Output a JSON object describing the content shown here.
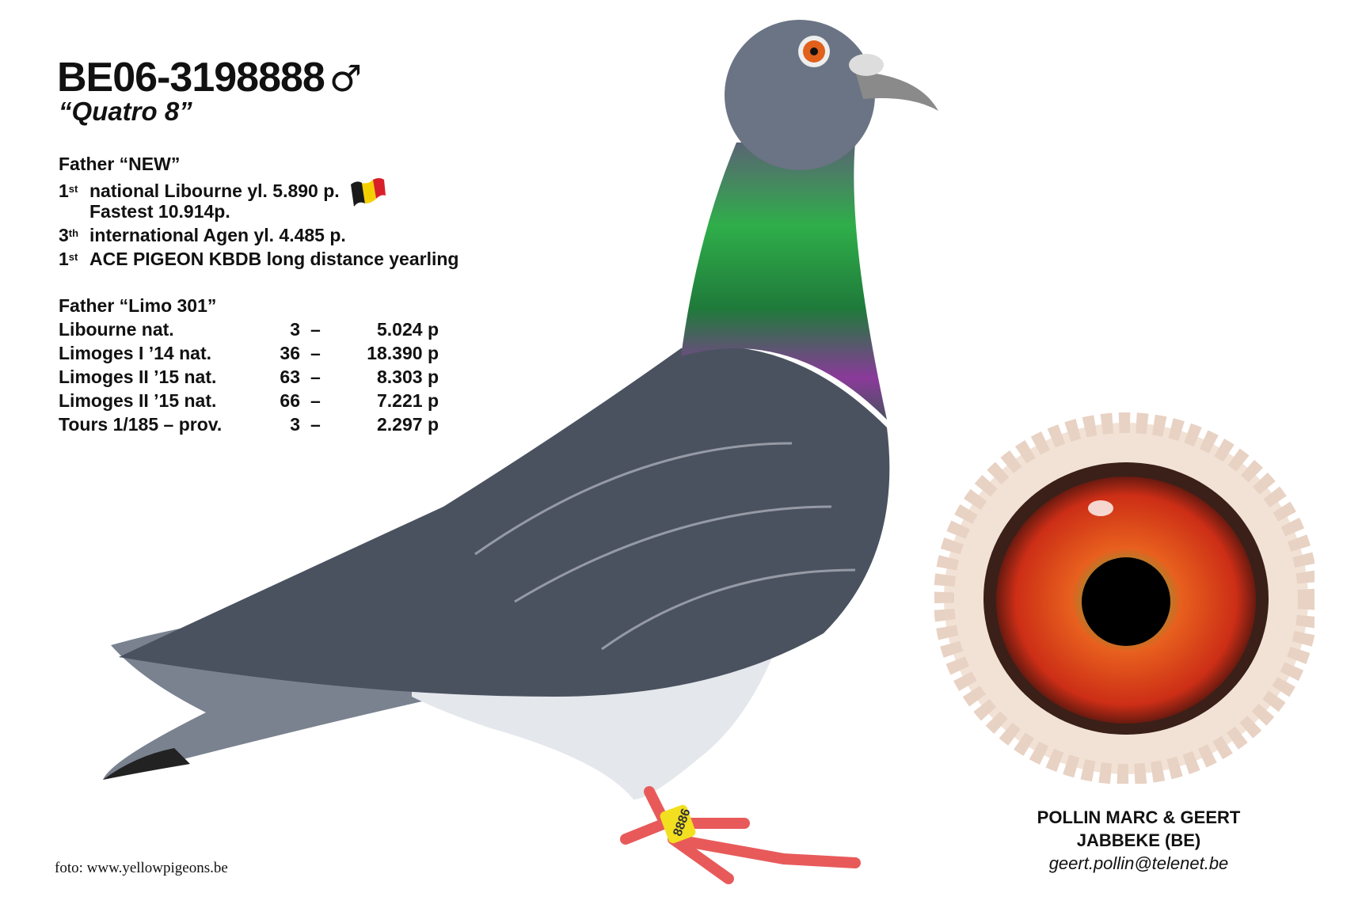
{
  "header": {
    "ring_number": "BE06-3198888",
    "sex_symbol": "♂",
    "name": "“Quatro 8”"
  },
  "father_new": {
    "heading": "Father “NEW”",
    "results": [
      {
        "ordinal": "1",
        "suffix": "st",
        "text": "national Libourne yl. 5.890 p."
      },
      {
        "ordinal": "",
        "suffix": "",
        "text": "Fastest 10.914p."
      },
      {
        "ordinal": "3",
        "suffix": "th",
        "text": "international Agen yl. 4.485 p."
      },
      {
        "ordinal": "1",
        "suffix": "st",
        "text": "ACE PIGEON KBDB long distance yearling"
      }
    ],
    "flag_icon": "belgium-flag",
    "flag_colors": [
      "#1a1a1a",
      "#f5d000",
      "#d8202a"
    ]
  },
  "father_limo": {
    "heading": "Father “Limo 301”",
    "results": [
      {
        "race": "Libourne nat.",
        "place": "3",
        "sep": "–",
        "entrants": "5.024 p"
      },
      {
        "race": "Limoges I ’14 nat.",
        "place": "36",
        "sep": "–",
        "entrants": "18.390 p"
      },
      {
        "race": "Limoges II ’15 nat.",
        "place": "63",
        "sep": "–",
        "entrants": "8.303 p"
      },
      {
        "race": "Limoges II ’15 nat.",
        "place": "66",
        "sep": "–",
        "entrants": "7.221 p"
      },
      {
        "race": "Tours 1/185 – prov.",
        "place": "3",
        "sep": "–",
        "entrants": "2.297 p"
      }
    ]
  },
  "photo_credit": "foto: www.yellowpigeons.be",
  "owner": {
    "name": "POLLIN MARC & GEERT",
    "location": "JABBEKE (BE)",
    "email": "geert.pollin@telenet.be"
  },
  "ring_label": "8886",
  "colors": {
    "iris": "#d8401c",
    "neck_green": "#2fae4a",
    "neck_purple": "#8a3a9a",
    "body_grey": "#4a5260",
    "feet": "#e85a5a",
    "ring": "#f2e020"
  }
}
